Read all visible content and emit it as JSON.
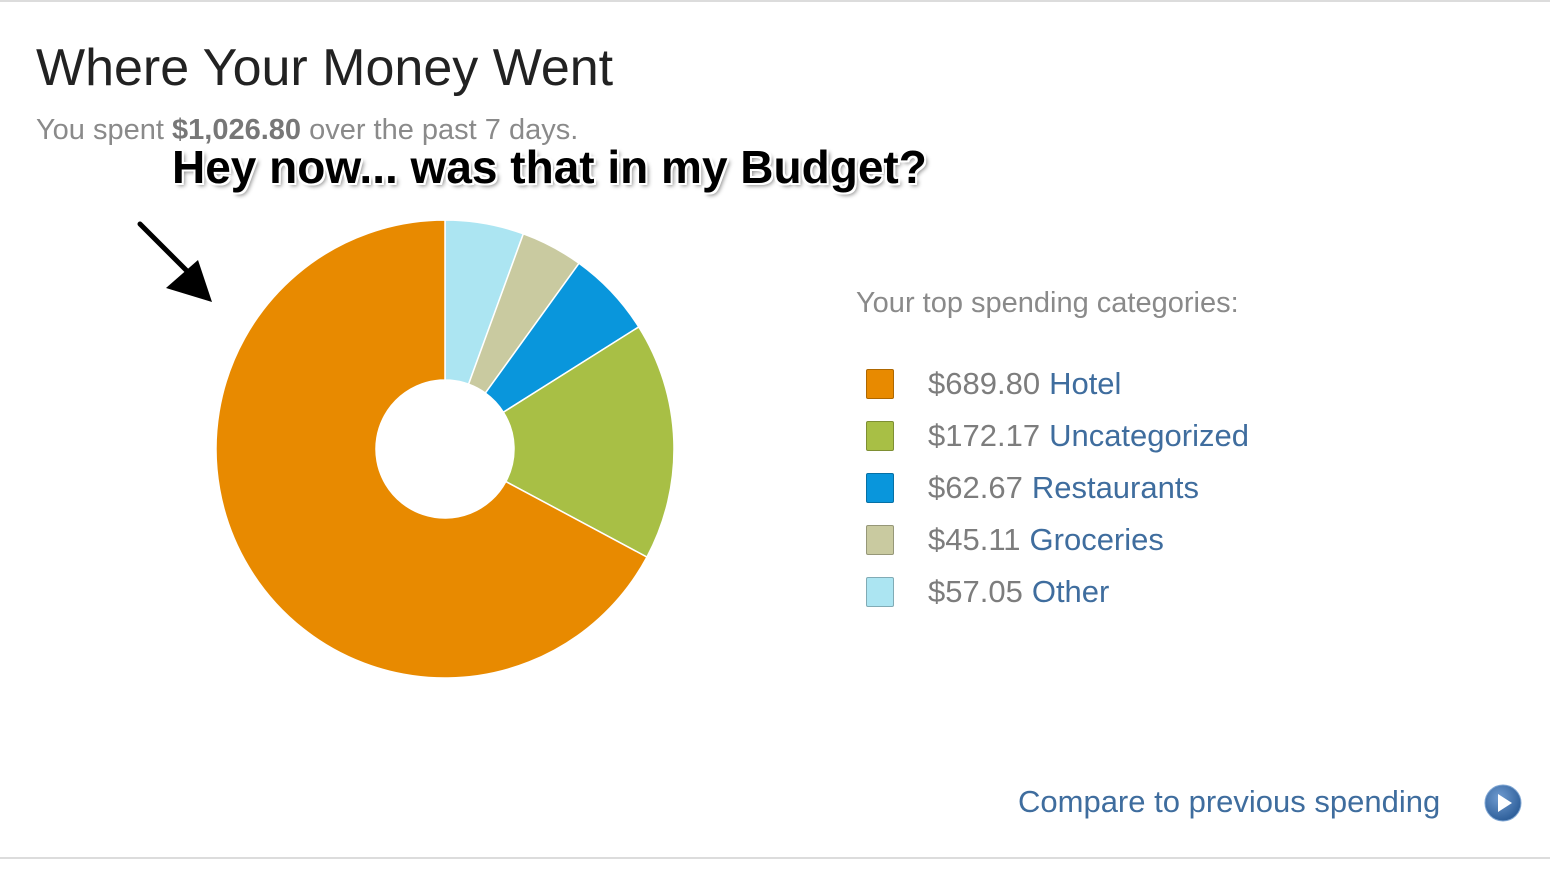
{
  "header": {
    "title": "Where Your Money Went",
    "subtitle_prefix": "You spent ",
    "subtitle_amount": "$1,026.80",
    "subtitle_suffix": " over the past 7 days."
  },
  "annotation": {
    "caption": "Hey now... was that in my Budget?"
  },
  "chart_data": {
    "type": "pie",
    "title": "",
    "categories": [
      "Hotel",
      "Uncategorized",
      "Restaurants",
      "Groceries",
      "Other"
    ],
    "values": [
      689.8,
      172.17,
      62.67,
      45.11,
      57.05
    ],
    "colors": [
      "#e88a00",
      "#a8bf45",
      "#0996dc",
      "#c9caa0",
      "#ace5f2"
    ],
    "order_clockwise_from_top": [
      "Other",
      "Groceries",
      "Restaurants",
      "Uncategorized",
      "Hotel"
    ],
    "donut_hole": true
  },
  "legend": {
    "heading": "Your top spending categories:",
    "items": [
      {
        "amount": "$689.80",
        "label": "Hotel",
        "color": "#e88a00"
      },
      {
        "amount": "$172.17",
        "label": "Uncategorized",
        "color": "#a8bf45"
      },
      {
        "amount": "$62.67",
        "label": "Restaurants",
        "color": "#0996dc"
      },
      {
        "amount": "$45.11",
        "label": "Groceries",
        "color": "#c9caa0"
      },
      {
        "amount": "$57.05",
        "label": "Other",
        "color": "#ace5f2"
      }
    ]
  },
  "footer": {
    "compare_label": "Compare to previous spending",
    "compare_icon": "play-circle-icon"
  }
}
